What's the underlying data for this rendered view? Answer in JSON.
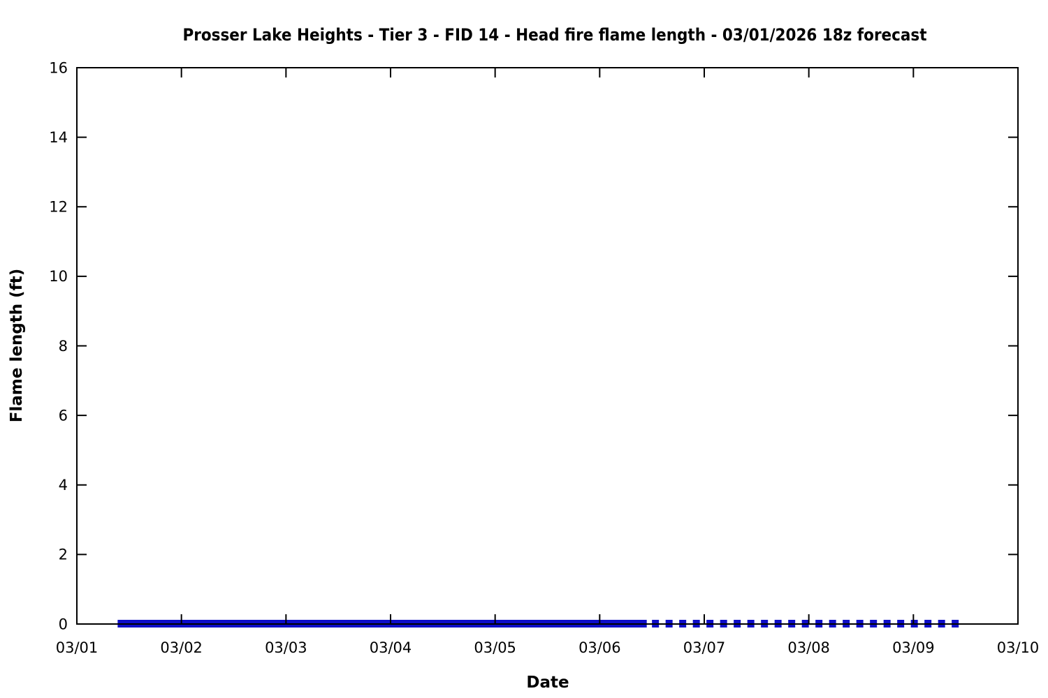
{
  "chart_data": {
    "type": "line",
    "title": "Prosser Lake Heights - Tier 3 - FID 14 - Head fire flame length - 03/01/2026 18z forecast",
    "xlabel": "Date",
    "ylabel": "Flame length (ft)",
    "xlim_days": [
      0,
      9
    ],
    "ylim": [
      0,
      16
    ],
    "x_tick_labels": [
      "03/01",
      "03/02",
      "03/03",
      "03/04",
      "03/05",
      "03/06",
      "03/07",
      "03/08",
      "03/09",
      "03/10"
    ],
    "y_tick_values": [
      0,
      2,
      4,
      6,
      8,
      10,
      12,
      14,
      16
    ],
    "grid": false,
    "legend": "none",
    "frame_style": "closed box, tick marks pointing inward, mirrored on top and right axes",
    "axis_color": "#000000",
    "line_color": "#0d0dc8",
    "series": [
      {
        "name": "head fire flame length (first period, solid)",
        "style": "solid",
        "y_value": 0,
        "x_start_day": 0.39,
        "x_end_day": 5.45
      },
      {
        "name": "head fire flame length (extended period, dashed)",
        "style": "dashed",
        "y_value": 0,
        "x_start_day": 5.5,
        "x_end_day": 8.44
      }
    ]
  }
}
